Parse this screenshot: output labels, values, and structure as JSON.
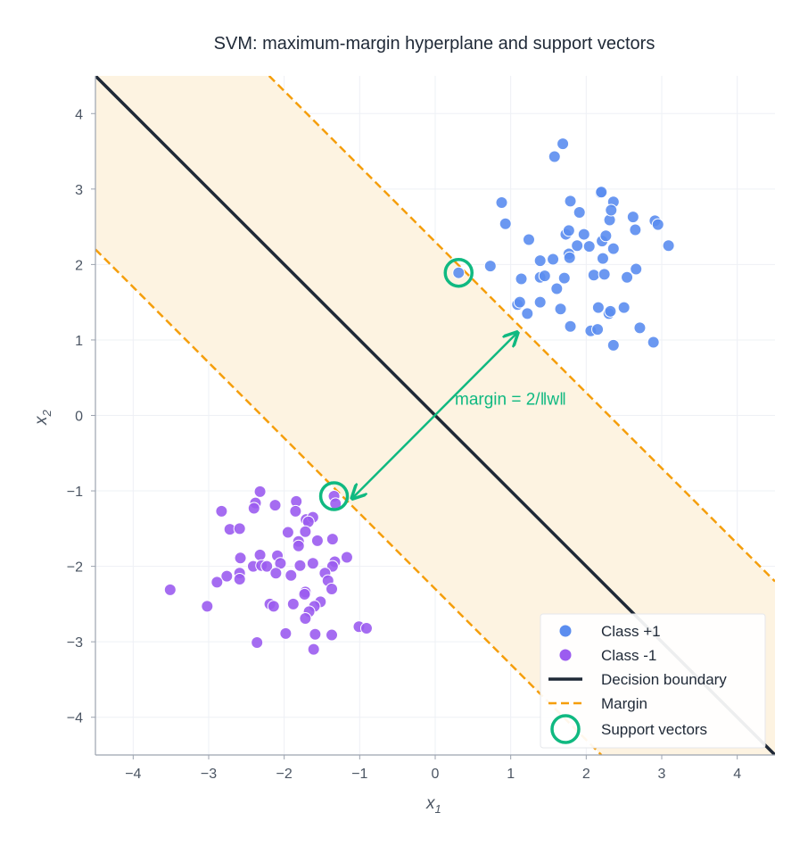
{
  "chart_data": {
    "type": "scatter",
    "title": "SVM: maximum-margin hyperplane and support vectors",
    "xlabel": "x",
    "xlabel_sub": "1",
    "ylabel": "x",
    "ylabel_sub": "2",
    "xlim": [
      -4.5,
      4.5
    ],
    "ylim": [
      -4.5,
      4.5
    ],
    "xticks": [
      -4,
      -3,
      -2,
      -1,
      0,
      1,
      2,
      3,
      4
    ],
    "yticks": [
      -4,
      -3,
      -2,
      -1,
      0,
      1,
      2,
      3,
      4
    ],
    "xtick_labels": [
      "−4",
      "−3",
      "−2",
      "−1",
      "0",
      "1",
      "2",
      "3",
      "4"
    ],
    "ytick_labels": [
      "−4",
      "−3",
      "−2",
      "−1",
      "0",
      "1",
      "2",
      "3",
      "4"
    ],
    "grid": true,
    "legend_position": "bottom-right",
    "colors": {
      "class_pos": "#5b8def",
      "class_neg": "#9b5cf0",
      "boundary": "#1f2937",
      "margin": "#f59e0b",
      "support": "#10b981",
      "band": "#fdf3e1"
    },
    "decision_boundary": {
      "w": [
        1,
        1
      ],
      "b": 0,
      "margin_offset": 2.3
    },
    "annotation": {
      "text": "margin  = 2/‖w‖",
      "x": 0.26,
      "y": 0.21,
      "arrow_from": [
        -1.1,
        -1.1
      ],
      "arrow_to": [
        1.09,
        1.1
      ]
    },
    "legend": [
      "Class +1",
      "Class -1",
      "Decision boundary",
      "Margin",
      "Support vectors"
    ],
    "support_vectors": [
      [
        0.31,
        1.89
      ],
      [
        -1.34,
        -1.07
      ]
    ],
    "series": [
      {
        "name": "Class +1",
        "points": [
          [
            1.69,
            3.6
          ],
          [
            1.58,
            3.43
          ],
          [
            0.88,
            2.82
          ],
          [
            0.93,
            2.54
          ],
          [
            1.24,
            2.33
          ],
          [
            0.73,
            1.98
          ],
          [
            0.31,
            1.89
          ],
          [
            1.14,
            1.81
          ],
          [
            1.39,
            2.05
          ],
          [
            1.56,
            2.07
          ],
          [
            1.79,
            2.84
          ],
          [
            1.91,
            2.69
          ],
          [
            2.19,
            2.95
          ],
          [
            2.2,
            2.96
          ],
          [
            2.36,
            2.83
          ],
          [
            2.31,
            2.59
          ],
          [
            2.33,
            2.72
          ],
          [
            2.62,
            2.63
          ],
          [
            2.65,
            2.46
          ],
          [
            2.91,
            2.58
          ],
          [
            2.95,
            2.53
          ],
          [
            3.09,
            2.25
          ],
          [
            1.73,
            2.4
          ],
          [
            1.77,
            2.45
          ],
          [
            1.88,
            2.25
          ],
          [
            1.97,
            2.4
          ],
          [
            2.04,
            2.24
          ],
          [
            2.21,
            2.31
          ],
          [
            2.26,
            2.38
          ],
          [
            2.36,
            2.21
          ],
          [
            1.77,
            2.14
          ],
          [
            1.78,
            2.09
          ],
          [
            2.22,
            2.08
          ],
          [
            1.39,
            1.83
          ],
          [
            1.45,
            1.85
          ],
          [
            1.71,
            1.82
          ],
          [
            1.61,
            1.68
          ],
          [
            2.1,
            1.86
          ],
          [
            2.24,
            1.87
          ],
          [
            2.54,
            1.83
          ],
          [
            2.66,
            1.94
          ],
          [
            1.09,
            1.47
          ],
          [
            1.12,
            1.5
          ],
          [
            1.22,
            1.35
          ],
          [
            1.39,
            1.5
          ],
          [
            1.66,
            1.41
          ],
          [
            1.79,
            1.18
          ],
          [
            2.16,
            1.43
          ],
          [
            2.3,
            1.35
          ],
          [
            2.32,
            1.38
          ],
          [
            2.5,
            1.43
          ],
          [
            2.06,
            1.12
          ],
          [
            2.15,
            1.14
          ],
          [
            2.71,
            1.16
          ],
          [
            2.36,
            0.93
          ],
          [
            2.89,
            0.97
          ]
        ]
      },
      {
        "name": "Class -1",
        "points": [
          [
            -2.32,
            -1.01
          ],
          [
            -2.38,
            -1.16
          ],
          [
            -2.4,
            -1.23
          ],
          [
            -2.83,
            -1.27
          ],
          [
            -2.12,
            -1.19
          ],
          [
            -1.84,
            -1.14
          ],
          [
            -1.85,
            -1.27
          ],
          [
            -1.34,
            -1.07
          ],
          [
            -1.32,
            -1.17
          ],
          [
            -1.71,
            -1.38
          ],
          [
            -1.62,
            -1.35
          ],
          [
            -1.68,
            -1.41
          ],
          [
            -2.72,
            -1.51
          ],
          [
            -2.59,
            -1.5
          ],
          [
            -1.95,
            -1.55
          ],
          [
            -1.72,
            -1.54
          ],
          [
            -1.81,
            -1.67
          ],
          [
            -1.81,
            -1.73
          ],
          [
            -1.56,
            -1.66
          ],
          [
            -1.36,
            -1.64
          ],
          [
            -2.58,
            -1.89
          ],
          [
            -2.32,
            -1.85
          ],
          [
            -2.09,
            -1.86
          ],
          [
            -2.05,
            -1.96
          ],
          [
            -2.41,
            -2.0
          ],
          [
            -2.3,
            -1.99
          ],
          [
            -2.23,
            -2.0
          ],
          [
            -1.79,
            -1.99
          ],
          [
            -1.62,
            -1.96
          ],
          [
            -1.17,
            -1.88
          ],
          [
            -1.33,
            -1.94
          ],
          [
            -1.36,
            -2.0
          ],
          [
            -2.11,
            -2.09
          ],
          [
            -1.91,
            -2.12
          ],
          [
            -1.46,
            -2.09
          ],
          [
            -1.42,
            -2.19
          ],
          [
            -1.37,
            -2.3
          ],
          [
            -2.59,
            -2.09
          ],
          [
            -2.59,
            -2.17
          ],
          [
            -2.76,
            -2.13
          ],
          [
            -2.89,
            -2.21
          ],
          [
            -3.51,
            -2.31
          ],
          [
            -3.02,
            -2.53
          ],
          [
            -1.72,
            -2.34
          ],
          [
            -1.73,
            -2.37
          ],
          [
            -2.19,
            -2.5
          ],
          [
            -2.14,
            -2.53
          ],
          [
            -1.88,
            -2.5
          ],
          [
            -1.52,
            -2.47
          ],
          [
            -1.6,
            -2.53
          ],
          [
            -1.67,
            -2.6
          ],
          [
            -1.72,
            -2.69
          ],
          [
            -1.01,
            -2.8
          ],
          [
            -0.91,
            -2.82
          ],
          [
            -1.98,
            -2.89
          ],
          [
            -1.59,
            -2.9
          ],
          [
            -1.37,
            -2.91
          ],
          [
            -2.36,
            -3.01
          ],
          [
            -1.61,
            -3.1
          ]
        ]
      }
    ]
  }
}
